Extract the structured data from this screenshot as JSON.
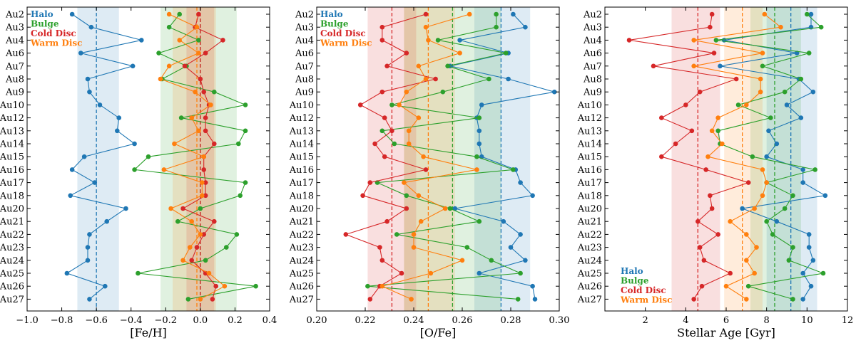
{
  "chart_data": {
    "type": "scatter",
    "categories": [
      "Au2",
      "Au3",
      "Au4",
      "Au6",
      "Au7",
      "Au8",
      "Au9",
      "Au10",
      "Au12",
      "Au13",
      "Au14",
      "Au15",
      "Au16",
      "Au17",
      "Au18",
      "Au20",
      "Au21",
      "Au22",
      "Au23",
      "Au24",
      "Au25",
      "Au26",
      "Au27"
    ],
    "legend": [
      {
        "name": "Halo",
        "color": "#1f77b4"
      },
      {
        "name": "Bulge",
        "color": "#2ca02c"
      },
      {
        "name": "Cold Disc",
        "color": "#d62728"
      },
      {
        "name": "Warm Disc",
        "color": "#ff7f0e"
      }
    ],
    "panels": [
      {
        "xlabel": "[Fe/H]",
        "xlim": [
          -1.0,
          0.4
        ],
        "xticks": [
          -1.0,
          -0.8,
          -0.6,
          -0.4,
          -0.2,
          0.0,
          0.2,
          0.4
        ],
        "tick_labels": [
          "−1.0",
          "−0.8",
          "−0.6",
          "−0.4",
          "−0.2",
          "0.0",
          "0.2",
          "0.4"
        ],
        "zero_line": true,
        "legend_position": "top-left",
        "series": [
          {
            "name": "Halo",
            "color": "#1f77b4",
            "values": [
              -0.74,
              -0.63,
              -0.34,
              -0.69,
              -0.39,
              -0.65,
              -0.64,
              -0.58,
              -0.47,
              -0.48,
              -0.38,
              -0.67,
              -0.74,
              -0.61,
              -0.75,
              -0.43,
              -0.54,
              -0.64,
              -0.65,
              -0.65,
              -0.77,
              -0.55,
              -0.64
            ],
            "mean": -0.6,
            "band": [
              -0.71,
              -0.47
            ]
          },
          {
            "name": "Bulge",
            "color": "#2ca02c",
            "values": [
              -0.12,
              -0.18,
              -0.01,
              -0.24,
              -0.08,
              -0.22,
              0.08,
              0.26,
              -0.11,
              0.26,
              0.22,
              -0.3,
              -0.38,
              0.26,
              0.23,
              0.0,
              -0.13,
              0.21,
              0.15,
              0.03,
              -0.36,
              0.32,
              -0.07
            ],
            "mean": 0.0,
            "band": [
              -0.23,
              0.21
            ]
          },
          {
            "name": "Cold Disc",
            "color": "#d62728",
            "values": [
              -0.01,
              -0.03,
              0.13,
              0.03,
              -0.09,
              0.0,
              0.02,
              0.05,
              0.03,
              0.03,
              0.08,
              0.02,
              0.02,
              0.03,
              0.03,
              -0.1,
              0.08,
              0.02,
              -0.02,
              -0.05,
              0.03,
              0.09,
              0.07
            ],
            "mean": 0.0,
            "band": [
              -0.08,
              0.08
            ]
          },
          {
            "name": "Warm Disc",
            "color": "#ff7f0e",
            "values": [
              -0.18,
              -0.02,
              -0.12,
              -0.01,
              -0.18,
              -0.23,
              -0.03,
              0.06,
              -0.05,
              -0.01,
              -0.15,
              0.02,
              -0.21,
              0.01,
              0.01,
              -0.17,
              -0.05,
              0.0,
              -0.06,
              -0.1,
              0.05,
              0.14,
              0.0
            ],
            "mean": -0.02,
            "band": [
              -0.16,
              0.09
            ]
          }
        ]
      },
      {
        "xlabel": "[O/Fe]",
        "xlim": [
          0.2,
          0.3
        ],
        "xticks": [
          0.2,
          0.22,
          0.24,
          0.26,
          0.28,
          0.3
        ],
        "tick_labels": [
          "0.20",
          "0.22",
          "0.24",
          "0.26",
          "0.28",
          "0.30"
        ],
        "zero_line": false,
        "legend_position": "top-left",
        "series": [
          {
            "name": "Halo",
            "color": "#1f77b4",
            "values": [
              0.281,
              0.286,
              0.259,
              0.279,
              0.255,
              0.279,
              0.298,
              0.268,
              0.266,
              0.267,
              0.267,
              0.268,
              0.282,
              0.284,
              0.289,
              0.257,
              0.277,
              0.284,
              0.28,
              0.286,
              0.267,
              0.289,
              0.29
            ],
            "mean": 0.276,
            "band": [
              0.265,
              0.288
            ]
          },
          {
            "name": "Bulge",
            "color": "#2ca02c",
            "values": [
              0.274,
              0.274,
              0.25,
              0.278,
              0.254,
              0.271,
              0.252,
              0.231,
              0.267,
              0.227,
              0.232,
              0.266,
              0.281,
              0.225,
              0.237,
              0.255,
              0.267,
              0.233,
              0.262,
              0.272,
              0.284,
              0.221,
              0.283
            ],
            "mean": 0.256,
            "band": [
              0.236,
              0.276
            ]
          },
          {
            "name": "Cold Disc",
            "color": "#d62728",
            "values": [
              0.245,
              0.227,
              0.227,
              0.237,
              0.229,
              0.249,
              0.227,
              0.218,
              0.228,
              0.231,
              0.224,
              0.228,
              0.245,
              0.222,
              0.219,
              0.237,
              0.229,
              0.212,
              0.226,
              0.227,
              0.235,
              0.226,
              0.222
            ],
            "mean": 0.231,
            "band": [
              0.221,
              0.241
            ]
          },
          {
            "name": "Warm Disc",
            "color": "#ff7f0e",
            "values": [
              0.263,
              0.245,
              0.246,
              0.259,
              0.242,
              0.245,
              0.237,
              0.234,
              0.242,
              0.238,
              0.238,
              0.244,
              0.266,
              0.236,
              0.242,
              0.253,
              0.243,
              0.24,
              0.24,
              0.26,
              0.247,
              0.227,
              0.239
            ],
            "mean": 0.246,
            "band": [
              0.236,
              0.257
            ]
          }
        ]
      },
      {
        "xlabel": "Stellar Age [Gyr]",
        "xlim": [
          0,
          12
        ],
        "xticks": [
          2,
          4,
          6,
          8,
          10,
          12
        ],
        "tick_labels": [
          "2",
          "4",
          "6",
          "8",
          "10",
          "12"
        ],
        "zero_line": false,
        "legend_position": "bottom-left",
        "series": [
          {
            "name": "Halo",
            "color": "#1f77b4",
            "values": [
              10.2,
              10.2,
              5.9,
              9.5,
              5.7,
              9.6,
              10.3,
              9.0,
              9.7,
              8.1,
              8.5,
              8.0,
              9.8,
              9.8,
              10.9,
              6.8,
              8.5,
              10.1,
              10.1,
              10.3,
              9.8,
              10.2,
              9.8
            ],
            "mean": 9.2,
            "band": [
              8.0,
              10.5
            ]
          },
          {
            "name": "Bulge",
            "color": "#2ca02c",
            "values": [
              10.0,
              10.7,
              5.5,
              10.1,
              7.8,
              9.7,
              8.9,
              6.6,
              8.2,
              5.6,
              5.7,
              7.3,
              10.4,
              8.0,
              9.3,
              8.9,
              8.0,
              8.3,
              9.3,
              9.1,
              10.8,
              7.1,
              9.3
            ],
            "mean": 8.4,
            "band": [
              7.2,
              9.7
            ]
          },
          {
            "name": "Cold Disc",
            "color": "#d62728",
            "values": [
              5.3,
              5.2,
              1.2,
              5.4,
              2.4,
              6.5,
              4.7,
              4.0,
              2.8,
              4.3,
              3.5,
              2.8,
              5.0,
              7.1,
              5.2,
              5.3,
              4.6,
              5.6,
              4.7,
              4.9,
              6.2,
              4.8,
              4.4
            ],
            "mean": 4.6,
            "band": [
              3.3,
              5.7
            ]
          },
          {
            "name": "Warm Disc",
            "color": "#ff7f0e",
            "values": [
              7.9,
              8.7,
              4.4,
              7.8,
              4.4,
              7.7,
              7.7,
              7.0,
              5.6,
              5.3,
              5.8,
              5.1,
              7.8,
              8.0,
              7.8,
              7.4,
              6.2,
              7.0,
              7.5,
              7.0,
              7.4,
              6.0,
              7.0
            ],
            "mean": 6.8,
            "band": [
              5.9,
              7.8
            ]
          }
        ]
      }
    ]
  }
}
